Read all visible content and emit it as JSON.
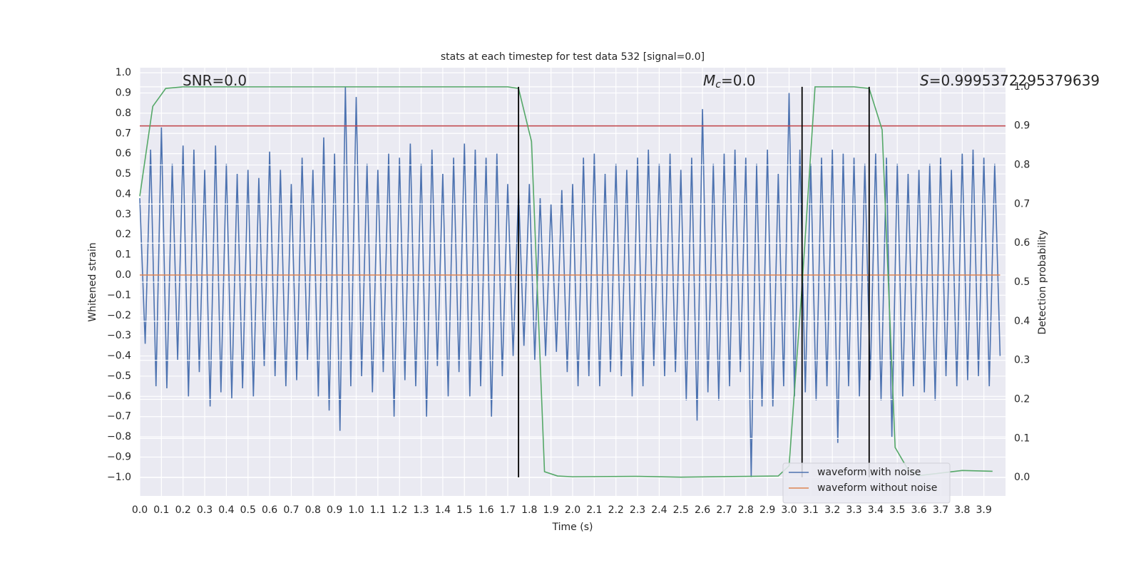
{
  "chart_data": {
    "type": "line",
    "title": "stats at each timestep for test data 532 [signal=0.0]",
    "xlabel": "Time (s)",
    "ylabel": "Whitened strain",
    "y2label": "Detection probability",
    "xlim": [
      0,
      4.0
    ],
    "ylim": [
      -1.092,
      1.025
    ],
    "y2lim": [
      -0.047,
      1.049
    ],
    "grid": true,
    "background": "#eaeaf2",
    "legend": "lower right",
    "annotations": [
      {
        "text": "SNR=0.0"
      },
      {
        "symbol": "M",
        "sub": "c",
        "text": "=0.0"
      },
      {
        "symbol": "S",
        "text": "=0.9995372295379639"
      }
    ],
    "xticks": [
      {
        "value": 0.0,
        "label": "0.0"
      },
      {
        "value": 0.1,
        "label": "0.1"
      },
      {
        "value": 0.2,
        "label": "0.2"
      },
      {
        "value": 0.3,
        "label": "0.3"
      },
      {
        "value": 0.4,
        "label": "0.4"
      },
      {
        "value": 0.5,
        "label": "0.5"
      },
      {
        "value": 0.6,
        "label": "0.6"
      },
      {
        "value": 0.7,
        "label": "0.7"
      },
      {
        "value": 0.8,
        "label": "0.8"
      },
      {
        "value": 0.9,
        "label": "0.9"
      },
      {
        "value": 1.0,
        "label": "1.0"
      },
      {
        "value": 1.1,
        "label": "1.1"
      },
      {
        "value": 1.2,
        "label": "1.2"
      },
      {
        "value": 1.3,
        "label": "1.3"
      },
      {
        "value": 1.4,
        "label": "1.4"
      },
      {
        "value": 1.5,
        "label": "1.5"
      },
      {
        "value": 1.6,
        "label": "1.6"
      },
      {
        "value": 1.7,
        "label": "1.7"
      },
      {
        "value": 1.8,
        "label": "1.8"
      },
      {
        "value": 1.9,
        "label": "1.9"
      },
      {
        "value": 2.0,
        "label": "2.0"
      },
      {
        "value": 2.1,
        "label": "2.1"
      },
      {
        "value": 2.2,
        "label": "2.2"
      },
      {
        "value": 2.3,
        "label": "2.3"
      },
      {
        "value": 2.4,
        "label": "2.4"
      },
      {
        "value": 2.5,
        "label": "2.5"
      },
      {
        "value": 2.6,
        "label": "2.6"
      },
      {
        "value": 2.7,
        "label": "2.7"
      },
      {
        "value": 2.8,
        "label": "2.8"
      },
      {
        "value": 2.9,
        "label": "2.9"
      },
      {
        "value": 3.0,
        "label": "3.0"
      },
      {
        "value": 3.1,
        "label": "3.1"
      },
      {
        "value": 3.2,
        "label": "3.2"
      },
      {
        "value": 3.3,
        "label": "3.3"
      },
      {
        "value": 3.4,
        "label": "3.4"
      },
      {
        "value": 3.5,
        "label": "3.5"
      },
      {
        "value": 3.6,
        "label": "3.6"
      },
      {
        "value": 3.7,
        "label": "3.7"
      },
      {
        "value": 3.8,
        "label": "3.8"
      },
      {
        "value": 3.9,
        "label": "3.9"
      }
    ],
    "yticks": [
      {
        "value": -1.0,
        "label": "−1.0"
      },
      {
        "value": -0.9,
        "label": "−0.9"
      },
      {
        "value": -0.8,
        "label": "−0.8"
      },
      {
        "value": -0.7,
        "label": "−0.7"
      },
      {
        "value": -0.6,
        "label": "−0.6"
      },
      {
        "value": -0.5,
        "label": "−0.5"
      },
      {
        "value": -0.4,
        "label": "−0.4"
      },
      {
        "value": -0.3,
        "label": "−0.3"
      },
      {
        "value": -0.2,
        "label": "−0.2"
      },
      {
        "value": -0.1,
        "label": "−0.1"
      },
      {
        "value": 0.0,
        "label": "0.0"
      },
      {
        "value": 0.1,
        "label": "0.1"
      },
      {
        "value": 0.2,
        "label": "0.2"
      },
      {
        "value": 0.3,
        "label": "0.3"
      },
      {
        "value": 0.4,
        "label": "0.4"
      },
      {
        "value": 0.5,
        "label": "0.5"
      },
      {
        "value": 0.6,
        "label": "0.6"
      },
      {
        "value": 0.7,
        "label": "0.7"
      },
      {
        "value": 0.8,
        "label": "0.8"
      },
      {
        "value": 0.9,
        "label": "0.9"
      },
      {
        "value": 1.0,
        "label": "1.0"
      }
    ],
    "y2ticks": [
      {
        "value": 0.0,
        "label": "0.0"
      },
      {
        "value": 0.1,
        "label": "0.1"
      },
      {
        "value": 0.2,
        "label": "0.2"
      },
      {
        "value": 0.3,
        "label": "0.3"
      },
      {
        "value": 0.4,
        "label": "0.4"
      },
      {
        "value": 0.5,
        "label": "0.5"
      },
      {
        "value": 0.6,
        "label": "0.6"
      },
      {
        "value": 0.7,
        "label": "0.7"
      },
      {
        "value": 0.8,
        "label": "0.8"
      },
      {
        "value": 0.9,
        "label": "0.9"
      },
      {
        "value": 1.0,
        "label": "1.0"
      }
    ],
    "series": [
      {
        "name": "waveform with noise",
        "color": "#4c72b0",
        "x": [
          0,
          0.025,
          0.05,
          0.075,
          0.1,
          0.125,
          0.15,
          0.175,
          0.2,
          0.225,
          0.25,
          0.275,
          0.3,
          0.325,
          0.35,
          0.375,
          0.4,
          0.425,
          0.45,
          0.475,
          0.5,
          0.525,
          0.55,
          0.575,
          0.6,
          0.625,
          0.65,
          0.675,
          0.7,
          0.725,
          0.75,
          0.775,
          0.8,
          0.825,
          0.85,
          0.875,
          0.9,
          0.925,
          0.95,
          0.975,
          1.0,
          1.025,
          1.05,
          1.075,
          1.1,
          1.125,
          1.15,
          1.175,
          1.2,
          1.225,
          1.25,
          1.275,
          1.3,
          1.325,
          1.35,
          1.375,
          1.4,
          1.425,
          1.45,
          1.475,
          1.5,
          1.525,
          1.55,
          1.575,
          1.6,
          1.625,
          1.65,
          1.675,
          1.7,
          1.725,
          1.75,
          1.775,
          1.8,
          1.825,
          1.85,
          1.875,
          1.9,
          1.925,
          1.95,
          1.975,
          2.0,
          2.025,
          2.05,
          2.075,
          2.1,
          2.125,
          2.15,
          2.175,
          2.2,
          2.225,
          2.25,
          2.275,
          2.3,
          2.325,
          2.35,
          2.375,
          2.4,
          2.425,
          2.45,
          2.475,
          2.5,
          2.525,
          2.55,
          2.575,
          2.6,
          2.625,
          2.65,
          2.675,
          2.7,
          2.725,
          2.75,
          2.775,
          2.8,
          2.825,
          2.85,
          2.875,
          2.9,
          2.925,
          2.95,
          2.975,
          3.0,
          3.025,
          3.05,
          3.075,
          3.1,
          3.125,
          3.15,
          3.175,
          3.2,
          3.225,
          3.25,
          3.275,
          3.3,
          3.325,
          3.35,
          3.375,
          3.4,
          3.425,
          3.45,
          3.475,
          3.5,
          3.525,
          3.55,
          3.575,
          3.6,
          3.625,
          3.65,
          3.675,
          3.7,
          3.725,
          3.75,
          3.775,
          3.8,
          3.825,
          3.85,
          3.875,
          3.9,
          3.925,
          3.95,
          3.975
        ],
        "values": [
          0.38,
          -0.34,
          0.62,
          -0.55,
          0.73,
          -0.56,
          0.55,
          -0.42,
          0.64,
          -0.6,
          0.62,
          -0.48,
          0.52,
          -0.65,
          0.64,
          -0.58,
          0.55,
          -0.61,
          0.5,
          -0.56,
          0.52,
          -0.6,
          0.48,
          -0.45,
          0.61,
          -0.5,
          0.52,
          -0.55,
          0.45,
          -0.52,
          0.58,
          -0.42,
          0.52,
          -0.6,
          0.68,
          -0.67,
          0.6,
          -0.77,
          0.93,
          -0.55,
          0.88,
          -0.5,
          0.55,
          -0.58,
          0.52,
          -0.48,
          0.6,
          -0.7,
          0.58,
          -0.52,
          0.65,
          -0.55,
          0.55,
          -0.7,
          0.62,
          -0.45,
          0.5,
          -0.6,
          0.58,
          -0.48,
          0.65,
          -0.6,
          0.62,
          -0.55,
          0.58,
          -0.7,
          0.6,
          -0.5,
          0.45,
          -0.4,
          0.42,
          -0.35,
          0.45,
          -0.42,
          0.38,
          -0.4,
          0.35,
          -0.38,
          0.42,
          -0.48,
          0.45,
          -0.55,
          0.58,
          -0.5,
          0.6,
          -0.55,
          0.5,
          -0.48,
          0.55,
          -0.5,
          0.52,
          -0.6,
          0.58,
          -0.55,
          0.62,
          -0.45,
          0.55,
          -0.5,
          0.6,
          -0.48,
          0.52,
          -0.62,
          0.58,
          -0.72,
          0.82,
          -0.58,
          0.55,
          -0.62,
          0.6,
          -0.55,
          0.62,
          -0.48,
          0.58,
          -1.0,
          0.55,
          -0.65,
          0.62,
          -0.65,
          0.5,
          -0.55,
          0.9,
          -0.6,
          0.62,
          -0.58,
          0.55,
          -0.62,
          0.58,
          -0.55,
          0.62,
          -0.83,
          0.6,
          -0.55,
          0.58,
          -0.6,
          0.55,
          -0.52,
          0.6,
          -0.62,
          0.58,
          -0.8,
          0.55,
          -0.6,
          0.5,
          -0.55,
          0.52,
          -0.58,
          0.55,
          -0.62,
          0.58,
          -0.5,
          0.52,
          -0.55,
          0.6,
          -0.52,
          0.62,
          -0.5,
          0.58,
          -0.55,
          0.55,
          -0.4
        ]
      },
      {
        "name": "waveform without noise",
        "color": "#dd8452",
        "x": [
          0,
          3.975
        ],
        "values": [
          0.0,
          0.0
        ]
      },
      {
        "axis": "y2",
        "color": "#55a868",
        "x": [
          0,
          0.06,
          0.12,
          0.2,
          1.7,
          1.75,
          1.81,
          1.87,
          1.93,
          2.0,
          2.3,
          2.5,
          2.95,
          3.0,
          3.06,
          3.12,
          3.3,
          3.37,
          3.43,
          3.49,
          3.55,
          3.6,
          3.8,
          3.94
        ],
        "values": [
          0.72,
          0.95,
          0.996,
          1.0,
          1.0,
          0.996,
          0.86,
          0.015,
          0.004,
          0.002,
          0.003,
          0.001,
          0.004,
          0.03,
          0.49,
          1.0,
          1.0,
          0.996,
          0.89,
          0.077,
          0.02,
          0.005,
          0.018,
          0.016
        ]
      }
    ],
    "threshold": {
      "value": 0.9,
      "axis": "y2",
      "color": "#c44e52"
    },
    "vlines": {
      "x": [
        1.75,
        3.06,
        3.37
      ],
      "y": -1.0,
      "y2": 1.0,
      "color": "#000000"
    }
  }
}
